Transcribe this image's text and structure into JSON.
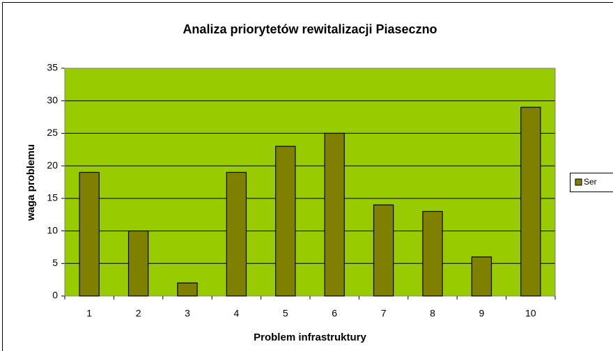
{
  "chart_data": {
    "type": "bar",
    "title": "Analiza priorytetów rewitalizacji Piaseczno",
    "xlabel": "Problem infrastruktury",
    "ylabel": "waga problemu",
    "categories": [
      "1",
      "2",
      "3",
      "4",
      "5",
      "6",
      "7",
      "8",
      "9",
      "10"
    ],
    "series": [
      {
        "name": "Ser",
        "color": "#808000",
        "values": [
          19,
          10,
          2,
          19,
          23,
          25,
          14,
          13,
          6,
          29
        ]
      }
    ],
    "ylim": [
      0,
      35
    ],
    "yticks": [
      0,
      5,
      10,
      15,
      20,
      25,
      30,
      35
    ],
    "grid": true,
    "plot_background": "#99cc00",
    "legend": "right"
  }
}
